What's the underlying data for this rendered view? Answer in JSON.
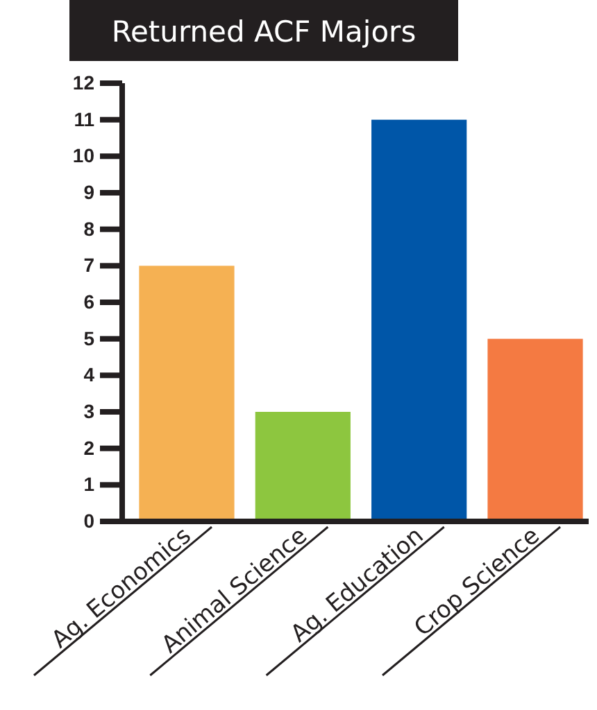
{
  "chart_data": {
    "type": "bar",
    "title": "Returned ACF Majors",
    "categories": [
      "Ag. Economics",
      "Animal Science",
      "Ag. Education",
      "Crop Science"
    ],
    "values": [
      7,
      3,
      11,
      5
    ],
    "colors": [
      "#f5b153",
      "#8dc63f",
      "#0056a8",
      "#f47a42"
    ],
    "ylim": [
      0,
      12
    ],
    "yticks": [
      0,
      1,
      2,
      3,
      4,
      5,
      6,
      7,
      8,
      9,
      10,
      11,
      12
    ],
    "grid": false
  }
}
